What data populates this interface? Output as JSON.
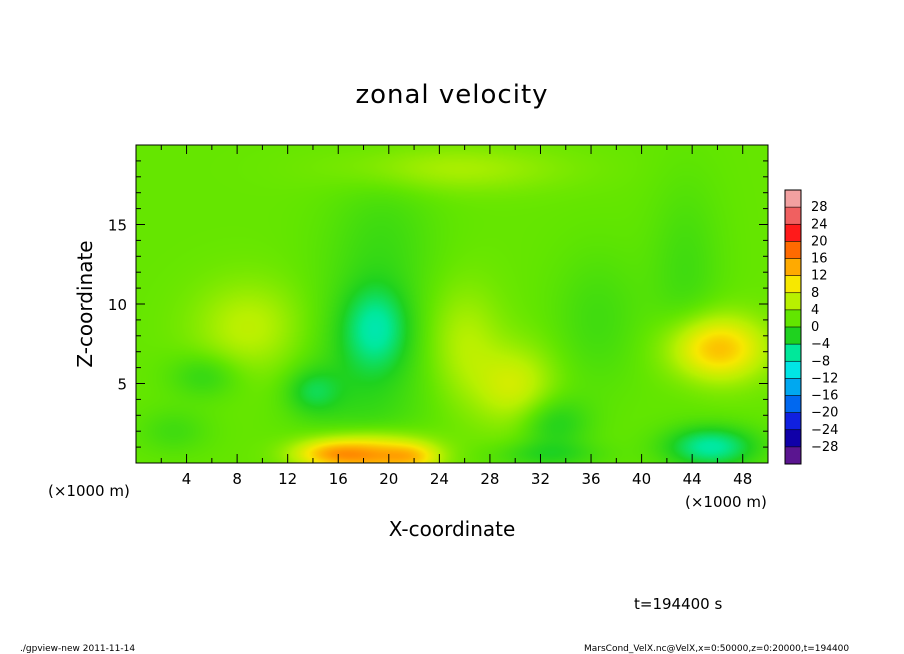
{
  "chart_data": {
    "type": "heatmap",
    "title": "zonal velocity",
    "xlabel": "X-coordinate",
    "ylabel": "Z-coordinate",
    "x_unit_left": "(×1000 m)",
    "x_unit_right": "(×1000 m)",
    "xlim": [
      0,
      50
    ],
    "ylim": [
      0,
      20
    ],
    "x_ticks": [
      "4",
      "8",
      "12",
      "16",
      "20",
      "24",
      "28",
      "32",
      "36",
      "40",
      "44",
      "48"
    ],
    "y_ticks": [
      "5",
      "10",
      "15"
    ],
    "x_tick_values": [
      4,
      8,
      12,
      16,
      20,
      24,
      28,
      32,
      36,
      40,
      44,
      48
    ],
    "y_tick_values": [
      5,
      10,
      15
    ],
    "colorbar": {
      "labels": [
        "28",
        "24",
        "20",
        "16",
        "12",
        "8",
        "4",
        "0",
        "−4",
        "−8",
        "−12",
        "−16",
        "−20",
        "−24",
        "−28"
      ],
      "levels": [
        -28,
        -24,
        -20,
        -16,
        -12,
        -8,
        -4,
        0,
        4,
        8,
        12,
        16,
        20,
        24,
        28
      ],
      "colors": [
        "#f2a0a0",
        "#f06060",
        "#ff1a1a",
        "#ff6a00",
        "#ffaa00",
        "#f7e800",
        "#b8f000",
        "#62e600",
        "#1fd21f",
        "#00e89a",
        "#00e5e5",
        "#00a8f0",
        "#0068f0",
        "#1020e0",
        "#1000a8",
        "#5a1590"
      ]
    },
    "background_value": 2,
    "features": [
      {
        "x": 18.5,
        "z": 0.5,
        "sx": 3.0,
        "sz": 0.9,
        "value": 12
      },
      {
        "x": 15.0,
        "z": 0.6,
        "sx": 2.0,
        "sz": 0.6,
        "value": 6
      },
      {
        "x": 22.0,
        "z": 0.4,
        "sx": 1.5,
        "sz": 0.6,
        "value": 5
      },
      {
        "x": 46.0,
        "z": 7.2,
        "sx": 2.6,
        "sz": 1.4,
        "value": 10
      },
      {
        "x": 9.0,
        "z": 8.5,
        "sx": 3.0,
        "sz": 2.0,
        "value": 4
      },
      {
        "x": 30.0,
        "z": 4.8,
        "sx": 2.2,
        "sz": 1.8,
        "value": 5
      },
      {
        "x": 26.0,
        "z": 7.5,
        "sx": 2.0,
        "sz": 2.5,
        "value": 3.5
      },
      {
        "x": 19.0,
        "z": 8.5,
        "sx": 1.8,
        "sz": 1.8,
        "value": -6
      },
      {
        "x": 18.0,
        "z": 5.5,
        "sx": 3.5,
        "sz": 4.0,
        "value": -3
      },
      {
        "x": 19.5,
        "z": 14.0,
        "sx": 3.0,
        "sz": 3.0,
        "value": -2
      },
      {
        "x": 14.0,
        "z": 4.5,
        "sx": 1.5,
        "sz": 1.0,
        "value": -4
      },
      {
        "x": 5.5,
        "z": 5.5,
        "sx": 2.0,
        "sz": 1.0,
        "value": -3
      },
      {
        "x": 33.0,
        "z": 2.5,
        "sx": 2.0,
        "sz": 1.2,
        "value": -4
      },
      {
        "x": 32.5,
        "z": 0.5,
        "sx": 3.0,
        "sz": 0.6,
        "value": -3
      },
      {
        "x": 45.5,
        "z": 1.0,
        "sx": 2.5,
        "sz": 0.9,
        "value": -8
      },
      {
        "x": 36.5,
        "z": 9.0,
        "sx": 2.5,
        "sz": 3.0,
        "value": -2
      },
      {
        "x": 43.5,
        "z": 12.0,
        "sx": 2.0,
        "sz": 4.0,
        "value": -2
      },
      {
        "x": 25.0,
        "z": 18.5,
        "sx": 6.0,
        "sz": 1.0,
        "value": 3
      },
      {
        "x": 3.0,
        "z": 2.0,
        "sx": 2.0,
        "sz": 1.0,
        "value": -2
      }
    ],
    "grid": false,
    "legend": "right"
  },
  "annotations": {
    "time": "t=194400 s",
    "footer_left": "./gpview-new  2011-11-14",
    "footer_right": "MarsCond_VelX.nc@VelX,x=0:50000,z=0:20000,t=194400"
  }
}
